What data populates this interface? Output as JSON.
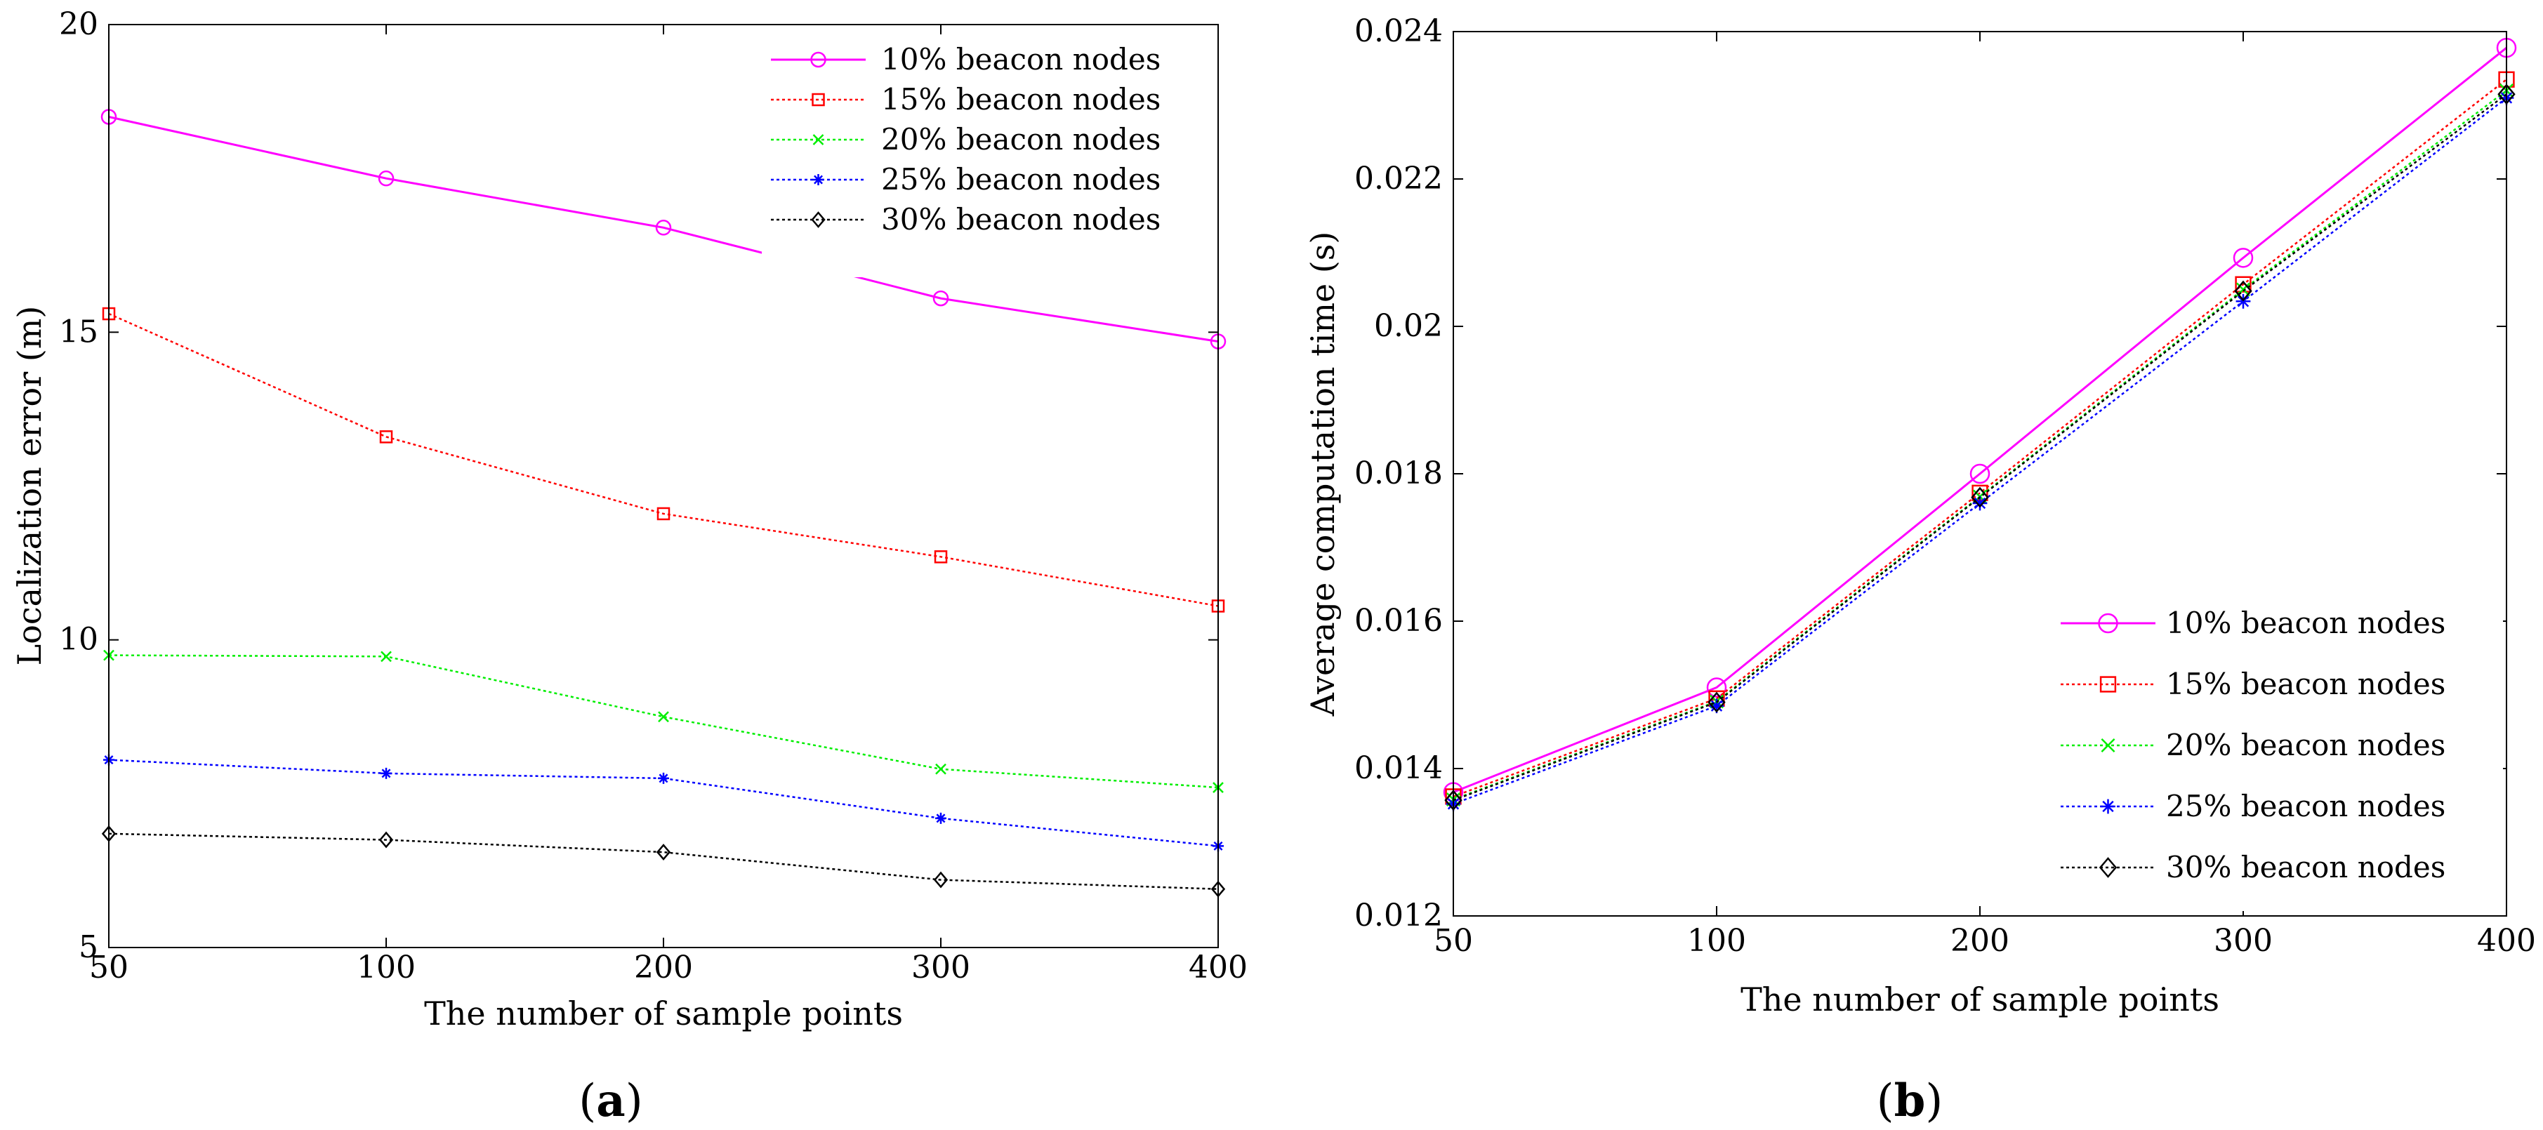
{
  "figure_caption": [
    "(a)",
    "(b)"
  ],
  "chart_data": [
    {
      "id": "a",
      "type": "line",
      "caption": "(a)",
      "caption_letter": "a",
      "xlabel": "The number of sample points",
      "ylabel": "Localization error (m)",
      "categories": [
        "50",
        "100",
        "200",
        "300",
        "400"
      ],
      "ylim": [
        5,
        20
      ],
      "yticks": [
        "5",
        "10",
        "15",
        "20"
      ],
      "ytick_values": [
        5,
        10,
        15,
        20
      ],
      "grid": false,
      "legend_position": "top-right",
      "series": [
        {
          "name": "10% beacon nodes",
          "color": "#ff00ff",
          "marker": "circle",
          "dash": "solid",
          "values": [
            18.5,
            17.5,
            16.7,
            15.55,
            14.85
          ]
        },
        {
          "name": "15% beacon nodes",
          "color": "#ff0000",
          "marker": "square",
          "dash": "dotted",
          "values": [
            15.3,
            13.3,
            12.05,
            11.35,
            10.55
          ]
        },
        {
          "name": "20% beacon nodes",
          "color": "#00ee00",
          "marker": "x",
          "dash": "dotted",
          "values": [
            9.75,
            9.73,
            8.75,
            7.9,
            7.6
          ]
        },
        {
          "name": "25% beacon nodes",
          "color": "#0000ff",
          "marker": "star",
          "dash": "dotted",
          "values": [
            8.05,
            7.83,
            7.75,
            7.1,
            6.65
          ]
        },
        {
          "name": "30% beacon nodes",
          "color": "#000000",
          "marker": "diamond",
          "dash": "dotted",
          "values": [
            6.85,
            6.75,
            6.55,
            6.1,
            5.95
          ]
        }
      ]
    },
    {
      "id": "b",
      "type": "line",
      "caption": "(b)",
      "caption_letter": "b",
      "xlabel": "The number of sample points",
      "ylabel": "Average computation time (s)",
      "categories": [
        "50",
        "100",
        "200",
        "300",
        "400"
      ],
      "ylim": [
        0.012,
        0.024
      ],
      "yticks": [
        "0.012",
        "0.014",
        "0.016",
        "0.018",
        "0.02",
        "0.022",
        "0.024"
      ],
      "ytick_values": [
        0.012,
        0.014,
        0.016,
        0.018,
        0.02,
        0.022,
        0.024
      ],
      "grid": false,
      "legend_position": "bottom-right",
      "series": [
        {
          "name": "10% beacon nodes",
          "color": "#ff00ff",
          "marker": "circle",
          "dash": "solid",
          "values": [
            0.01368,
            0.0151,
            0.018,
            0.02093,
            0.02378
          ]
        },
        {
          "name": "15% beacon nodes",
          "color": "#ff0000",
          "marker": "square",
          "dash": "dotted",
          "values": [
            0.01362,
            0.01495,
            0.01774,
            0.02057,
            0.02335
          ]
        },
        {
          "name": "20% beacon nodes",
          "color": "#00ee00",
          "marker": "x",
          "dash": "dotted",
          "values": [
            0.01358,
            0.01491,
            0.01769,
            0.0205,
            0.0232
          ]
        },
        {
          "name": "25% beacon nodes",
          "color": "#0000ff",
          "marker": "star",
          "dash": "dotted",
          "values": [
            0.01352,
            0.01485,
            0.0176,
            0.02034,
            0.0231
          ]
        },
        {
          "name": "30% beacon nodes",
          "color": "#000000",
          "marker": "diamond",
          "dash": "dotted",
          "values": [
            0.01357,
            0.0149,
            0.01768,
            0.02048,
            0.02315
          ]
        }
      ]
    }
  ]
}
